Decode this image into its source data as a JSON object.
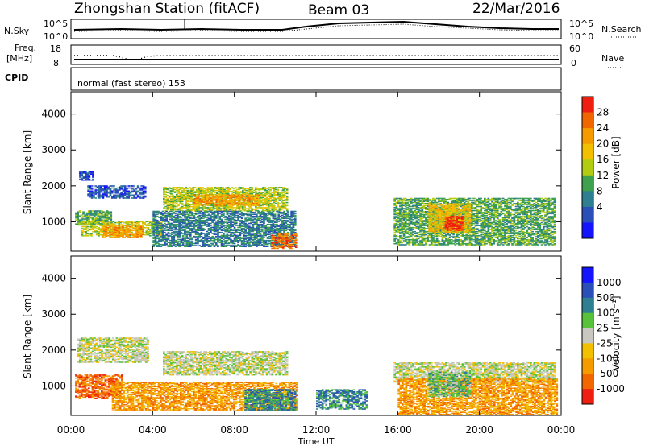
{
  "header": {
    "station": "Zhongshan Station (fitACF)",
    "beam": "Beam 03",
    "date": "22/Mar/2016"
  },
  "top_panels": {
    "nsky_label": "N.Sky",
    "nsky_ticks": [
      "10^5",
      "10^0"
    ],
    "nsearch_label": "N.Search",
    "nsearch_ticks": [
      "10^5",
      "10^0"
    ],
    "freq_label_1": "Freq.",
    "freq_label_2": "[MHz]",
    "freq_ticks": [
      "18",
      "8"
    ],
    "nave_label": "Nave",
    "nave_ticks": [
      "60",
      "0"
    ],
    "cpid_label": "CPID",
    "cpid_text": "normal (fast stereo) 153"
  },
  "chart_data": [
    {
      "type": "heatmap",
      "name": "power",
      "ylabel": "Slant Range [km]",
      "xlabel": "Time UT",
      "xticks": [
        "00:00",
        "04:00",
        "08:00",
        "12:00",
        "16:00",
        "20:00",
        "00:00"
      ],
      "xlim_hours": [
        0,
        24
      ],
      "ylim": [
        180,
        4620
      ],
      "yticks": [
        1000,
        2000,
        3000,
        4000
      ],
      "colorbar": {
        "label": "Power [dB]",
        "ticks": [
          "28",
          "24",
          "20",
          "16",
          "12",
          "8",
          "4"
        ],
        "colors": [
          "#1414ff",
          "#2b4fb9",
          "#2e7f8f",
          "#3ea14e",
          "#b2cc12",
          "#f2c000",
          "#f59b00",
          "#f26600",
          "#ee1f10"
        ]
      },
      "regions": [
        {
          "t0": 0.4,
          "t1": 1.1,
          "r0": 2150,
          "r1": 2400,
          "level": 1
        },
        {
          "t0": 0.8,
          "t1": 3.6,
          "r0": 1650,
          "r1": 2000,
          "level": 1
        },
        {
          "t0": 0.2,
          "t1": 2.0,
          "r0": 900,
          "r1": 1300,
          "level": 3
        },
        {
          "t0": 0.5,
          "t1": 4.5,
          "r0": 600,
          "r1": 1000,
          "level": 4
        },
        {
          "t0": 1.5,
          "t1": 3.5,
          "r0": 550,
          "r1": 900,
          "level": 6
        },
        {
          "t0": 4.5,
          "t1": 10.6,
          "r0": 1300,
          "r1": 1950,
          "level": 4
        },
        {
          "t0": 6.0,
          "t1": 9.2,
          "r0": 1450,
          "r1": 1750,
          "level": 6
        },
        {
          "t0": 4.0,
          "t1": 11.0,
          "r0": 300,
          "r1": 1300,
          "level": 2
        },
        {
          "t0": 9.8,
          "t1": 11.0,
          "r0": 250,
          "r1": 650,
          "level": 7
        },
        {
          "t0": 15.8,
          "t1": 23.7,
          "r0": 350,
          "r1": 1650,
          "level": 3
        },
        {
          "t0": 17.5,
          "t1": 19.5,
          "r0": 700,
          "r1": 1500,
          "level": 5
        },
        {
          "t0": 18.3,
          "t1": 19.2,
          "r0": 750,
          "r1": 1150,
          "level": 8
        }
      ]
    },
    {
      "type": "heatmap",
      "name": "velocity",
      "ylabel": "Slant Range [km]",
      "xlabel": "Time UT",
      "xticks": [
        "00:00",
        "04:00",
        "08:00",
        "12:00",
        "16:00",
        "20:00",
        "00:00"
      ],
      "xlim_hours": [
        0,
        24
      ],
      "ylim": [
        180,
        4620
      ],
      "yticks": [
        1000,
        2000,
        3000,
        4000
      ],
      "colorbar": {
        "label": "Velocity [m s⁻¹]",
        "ticks": [
          "1000",
          "500",
          "100",
          "25",
          "-25",
          "-100",
          "-500",
          "-1000"
        ],
        "colors": [
          "#ee1f10",
          "#f26600",
          "#f59b00",
          "#f2c000",
          "#c8c8c0",
          "#58c23a",
          "#2e7f8f",
          "#2b4fb9",
          "#1414ff"
        ]
      },
      "regions": [
        {
          "t0": 0.3,
          "t1": 3.8,
          "r0": 1650,
          "r1": 2350,
          "level": 4
        },
        {
          "t0": 0.2,
          "t1": 2.5,
          "r0": 650,
          "r1": 1300,
          "level": 1
        },
        {
          "t0": 2.0,
          "t1": 11.0,
          "r0": 300,
          "r1": 1100,
          "level": 2
        },
        {
          "t0": 4.5,
          "t1": 10.6,
          "r0": 1300,
          "r1": 1950,
          "level": 4
        },
        {
          "t0": 8.5,
          "t1": 11.0,
          "r0": 300,
          "r1": 900,
          "level": 6
        },
        {
          "t0": 12.0,
          "t1": 14.5,
          "r0": 350,
          "r1": 900,
          "level": 6
        },
        {
          "t0": 15.8,
          "t1": 23.7,
          "r0": 1100,
          "r1": 1650,
          "level": 4
        },
        {
          "t0": 16.0,
          "t1": 23.8,
          "r0": 200,
          "r1": 1200,
          "level": 2
        },
        {
          "t0": 17.5,
          "t1": 19.5,
          "r0": 700,
          "r1": 1400,
          "level": 5
        }
      ]
    }
  ]
}
